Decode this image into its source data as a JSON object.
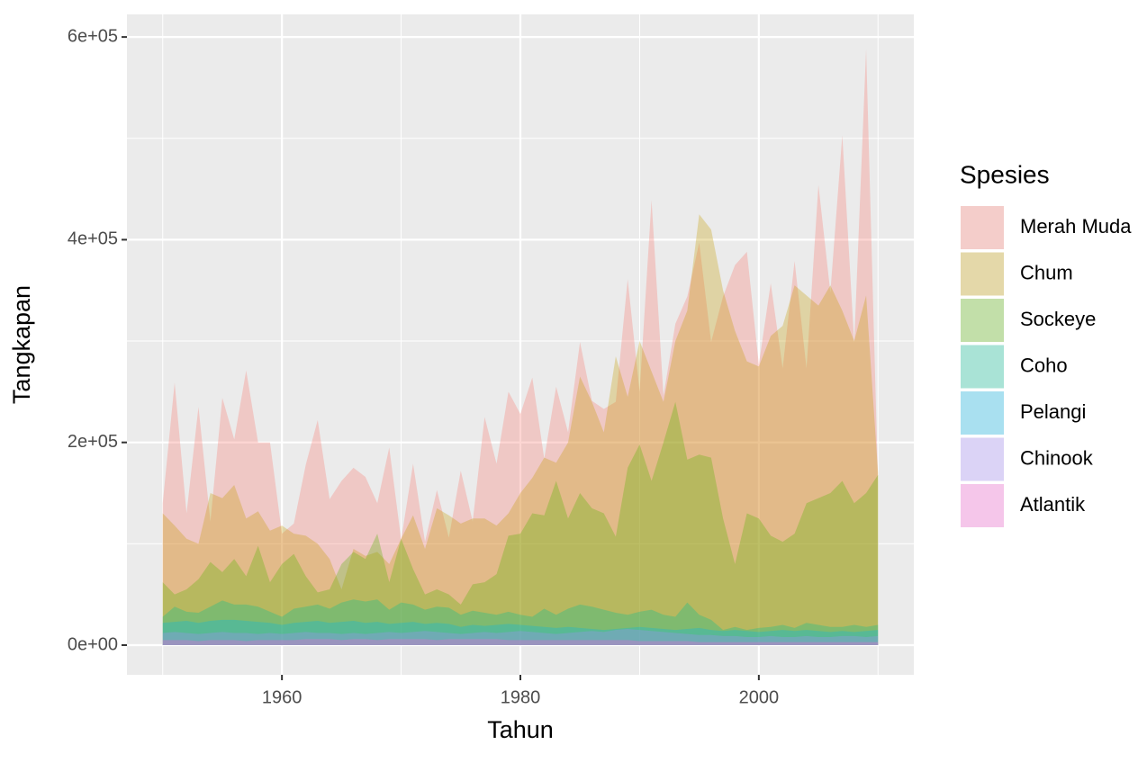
{
  "chart_data": {
    "type": "area",
    "x_label": "Tahun",
    "y_label": "Tangkapan",
    "legend_title": "Spesies",
    "x": [
      1950,
      1951,
      1952,
      1953,
      1954,
      1955,
      1956,
      1957,
      1958,
      1959,
      1960,
      1961,
      1962,
      1963,
      1964,
      1965,
      1966,
      1967,
      1968,
      1969,
      1970,
      1971,
      1972,
      1973,
      1974,
      1975,
      1976,
      1977,
      1978,
      1979,
      1980,
      1981,
      1982,
      1983,
      1984,
      1985,
      1986,
      1987,
      1988,
      1989,
      1990,
      1991,
      1992,
      1993,
      1994,
      1995,
      1996,
      1997,
      1998,
      1999,
      2000,
      2001,
      2002,
      2003,
      2004,
      2005,
      2006,
      2007,
      2008,
      2009,
      2010
    ],
    "series": [
      {
        "name": "Merah Muda",
        "color": "#F8766D",
        "values": [
          140000,
          259000,
          130000,
          235000,
          122000,
          244000,
          203000,
          271000,
          200000,
          200000,
          110000,
          120000,
          178000,
          222000,
          144000,
          162000,
          175000,
          166000,
          140000,
          195000,
          104000,
          179000,
          102000,
          153000,
          106000,
          172000,
          122000,
          225000,
          179000,
          250000,
          228000,
          264000,
          184000,
          255000,
          210000,
          299000,
          241000,
          233000,
          240000,
          361000,
          250000,
          439000,
          246000,
          317000,
          344000,
          397000,
          299000,
          344000,
          375000,
          388000,
          277000,
          357000,
          273000,
          379000,
          273000,
          454000,
          348000,
          503000,
          298000,
          588000,
          160000
        ]
      },
      {
        "name": "Chum",
        "color": "#C49A00",
        "values": [
          130000,
          118000,
          105000,
          100000,
          150000,
          145000,
          158000,
          125000,
          132000,
          113000,
          118000,
          110000,
          108000,
          100000,
          85000,
          55000,
          95000,
          88000,
          92000,
          80000,
          105000,
          128000,
          95000,
          135000,
          128000,
          120000,
          125000,
          125000,
          118000,
          130000,
          150000,
          165000,
          185000,
          180000,
          200000,
          265000,
          240000,
          210000,
          285000,
          245000,
          300000,
          270000,
          240000,
          300000,
          330000,
          425000,
          410000,
          350000,
          310000,
          280000,
          275000,
          305000,
          315000,
          355000,
          345000,
          335000,
          355000,
          330000,
          300000,
          345000,
          170000
        ]
      },
      {
        "name": "Sockeye",
        "color": "#53B400",
        "values": [
          62000,
          50000,
          55000,
          65000,
          82000,
          72000,
          85000,
          68000,
          98000,
          62000,
          80000,
          90000,
          68000,
          52000,
          55000,
          80000,
          92000,
          85000,
          110000,
          62000,
          105000,
          75000,
          50000,
          55000,
          50000,
          40000,
          60000,
          62000,
          70000,
          108000,
          110000,
          130000,
          128000,
          162000,
          125000,
          150000,
          135000,
          130000,
          107000,
          175000,
          198000,
          162000,
          200000,
          240000,
          183000,
          188000,
          185000,
          125000,
          80000,
          130000,
          125000,
          108000,
          102000,
          110000,
          140000,
          145000,
          150000,
          162000,
          140000,
          150000,
          168000
        ]
      },
      {
        "name": "Coho",
        "color": "#00C094",
        "values": [
          28000,
          38000,
          33000,
          32000,
          38000,
          44000,
          40000,
          40000,
          38000,
          33000,
          28000,
          36000,
          38000,
          40000,
          36000,
          42000,
          45000,
          43000,
          45000,
          35000,
          42000,
          40000,
          35000,
          38000,
          37000,
          30000,
          34000,
          32000,
          30000,
          33000,
          30000,
          28000,
          36000,
          30000,
          36000,
          40000,
          38000,
          35000,
          32000,
          30000,
          33000,
          35000,
          30000,
          28000,
          42000,
          30000,
          25000,
          15000,
          18000,
          15000,
          17000,
          18000,
          20000,
          17000,
          22000,
          20000,
          18000,
          18000,
          20000,
          18000,
          20000
        ]
      },
      {
        "name": "Pelangi",
        "color": "#00B6EB",
        "values": [
          22000,
          23000,
          24000,
          22000,
          24000,
          25000,
          25000,
          24000,
          23000,
          22000,
          20000,
          22000,
          23000,
          24000,
          22000,
          23000,
          24000,
          22000,
          23000,
          21000,
          22000,
          23000,
          21000,
          22000,
          21000,
          18000,
          20000,
          19000,
          20000,
          21000,
          20000,
          19000,
          18000,
          17000,
          18000,
          17000,
          16000,
          15000,
          16000,
          17000,
          18000,
          17000,
          16000,
          15000,
          16000,
          17000,
          15000,
          14000,
          15000,
          14000,
          13000,
          14000,
          15000,
          14000,
          15000,
          14000,
          13000,
          14000,
          13000,
          14000,
          15000
        ]
      },
      {
        "name": "Chinook",
        "color": "#A58AFF",
        "values": [
          12000,
          13000,
          12000,
          11000,
          12000,
          13000,
          12000,
          12000,
          11000,
          12000,
          11000,
          12000,
          13000,
          12000,
          12000,
          11000,
          12000,
          11000,
          12000,
          13000,
          12000,
          13000,
          14000,
          13000,
          12000,
          11000,
          12000,
          13000,
          12000,
          13000,
          14000,
          13000,
          12000,
          11000,
          12000,
          13000,
          14000,
          13000,
          15000,
          16000,
          15000,
          14000,
          13000,
          12000,
          11000,
          10000,
          10000,
          9000,
          9000,
          8000,
          8000,
          9000,
          8000,
          8000,
          9000,
          8000,
          8000,
          9000,
          9000,
          8000,
          9000
        ]
      },
      {
        "name": "Atlantik",
        "color": "#FB61D7",
        "values": [
          5000,
          5000,
          5000,
          4000,
          5000,
          5000,
          5000,
          4000,
          5000,
          5000,
          5000,
          5000,
          6000,
          6000,
          6000,
          5000,
          6000,
          6000,
          5000,
          6000,
          6000,
          6000,
          6000,
          5000,
          6000,
          6000,
          6000,
          6000,
          6000,
          5000,
          5000,
          5000,
          5000,
          5000,
          5000,
          5000,
          5000,
          5000,
          5000,
          5000,
          4000,
          4000,
          4000,
          4000,
          4000,
          3000,
          3000,
          3000,
          3000,
          3000,
          3000,
          3000,
          3000,
          3000,
          3000,
          3000,
          3000,
          3000,
          3000,
          3000,
          3000
        ]
      }
    ],
    "fill_opacity": 0.3,
    "xlim": [
      1947,
      2013
    ],
    "xticks": [
      1960,
      1980,
      2000
    ],
    "xminor": [
      1950,
      1970,
      1990,
      2010
    ],
    "ylim": [
      -29300,
      622300
    ],
    "yticks": [
      {
        "value": 0,
        "label": "0e+00"
      },
      {
        "value": 200000,
        "label": "2e+05"
      },
      {
        "value": 400000,
        "label": "4e+05"
      },
      {
        "value": 600000,
        "label": "6e+05"
      }
    ],
    "yminor": [
      100000,
      300000,
      500000
    ],
    "grid": true,
    "legend_position": "right"
  }
}
